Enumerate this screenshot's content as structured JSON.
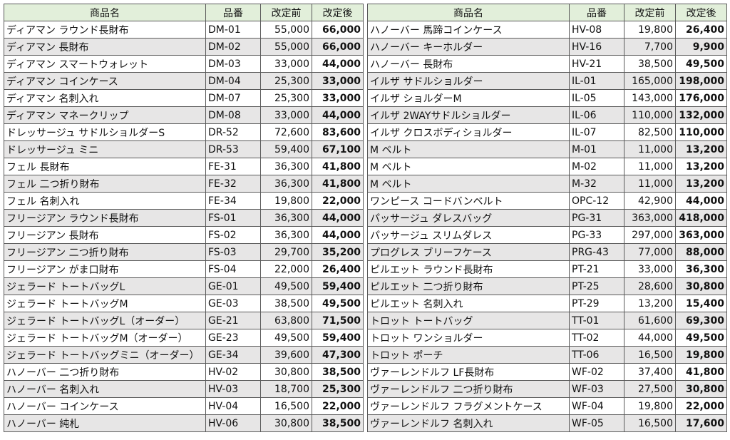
{
  "header": [
    "商品名",
    "品番",
    "改定前",
    "改定後"
  ],
  "tables": [
    {
      "rows": [
        [
          "ディアマン ラウンド長財布",
          "DM-01",
          "55,000",
          "66,000"
        ],
        [
          "ディアマン 長財布",
          "DM-02",
          "55,000",
          "66,000"
        ],
        [
          "ディアマン スマートウォレット",
          "DM-03",
          "33,000",
          "44,000"
        ],
        [
          "ディアマン コインケース",
          "DM-04",
          "25,300",
          "33,000"
        ],
        [
          "ディアマン 名刺入れ",
          "DM-07",
          "25,300",
          "33,000"
        ],
        [
          "ディアマン マネークリップ",
          "DM-08",
          "33,000",
          "44,000"
        ],
        [
          "ドレッサージュ サドルショルダーS",
          "DR-52",
          "72,600",
          "83,600"
        ],
        [
          "ドレッサージュ ミニ",
          "DR-53",
          "59,400",
          "67,100"
        ],
        [
          "フェル 長財布",
          "FE-31",
          "36,300",
          "41,800"
        ],
        [
          "フェル 二つ折り財布",
          "FE-32",
          "36,300",
          "41,800"
        ],
        [
          "フェル 名刺入れ",
          "FE-34",
          "19,800",
          "22,000"
        ],
        [
          "フリージアン ラウンド長財布",
          "FS-01",
          "36,300",
          "44,000"
        ],
        [
          "フリージアン 長財布",
          "FS-02",
          "36,300",
          "44,000"
        ],
        [
          "フリージアン 二つ折り財布",
          "FS-03",
          "29,700",
          "35,200"
        ],
        [
          "フリージアン がま口財布",
          "FS-04",
          "22,000",
          "26,400"
        ],
        [
          "ジェラード トートバッグL",
          "GE-01",
          "49,500",
          "59,400"
        ],
        [
          "ジェラード トートバッグM",
          "GE-03",
          "38,500",
          "49,500"
        ],
        [
          "ジェラード トートバッグL（オーダー）",
          "GE-21",
          "63,800",
          "71,500"
        ],
        [
          "ジェラード トートバッグM（オーダー）",
          "GE-23",
          "49,500",
          "59,400"
        ],
        [
          "ジェラード トートバッグミニ（オーダー）",
          "GE-34",
          "39,600",
          "47,300"
        ],
        [
          "ハノーバー 二つ折り財布",
          "HV-02",
          "30,800",
          "38,500"
        ],
        [
          "ハノーバー 名刺入れ",
          "HV-03",
          "18,700",
          "25,300"
        ],
        [
          "ハノーバー コインケース",
          "HV-04",
          "16,500",
          "22,000"
        ],
        [
          "ハノーバー 純札",
          "HV-06",
          "30,800",
          "38,500"
        ]
      ]
    },
    {
      "rows": [
        [
          "ハノーバー 馬蹄コインケース",
          "HV-08",
          "19,800",
          "26,400"
        ],
        [
          "ハノーバー キーホルダー",
          "HV-16",
          "7,700",
          "9,900"
        ],
        [
          "ハノーバー 長財布",
          "HV-21",
          "38,500",
          "49,500"
        ],
        [
          "イルザ サドルショルダー",
          "IL-01",
          "165,000",
          "198,000"
        ],
        [
          "イルザ ショルダーM",
          "IL-05",
          "143,000",
          "176,000"
        ],
        [
          "イルザ 2WAYサドルショルダー",
          "IL-06",
          "110,000",
          "132,000"
        ],
        [
          "イルザ クロスボディショルダー",
          "IL-07",
          "82,500",
          "110,000"
        ],
        [
          "M ベルト",
          "M-01",
          "11,000",
          "13,200"
        ],
        [
          "M ベルト",
          "M-02",
          "11,000",
          "13,200"
        ],
        [
          "M ベルト",
          "M-32",
          "11,000",
          "13,200"
        ],
        [
          "ワンピース コードバンベルト",
          "OPC-12",
          "42,900",
          "44,000"
        ],
        [
          "パッサージュ ダレスバッグ",
          "PG-31",
          "363,000",
          "418,000"
        ],
        [
          "パッサージュ スリムダレス",
          "PG-33",
          "297,000",
          "363,000"
        ],
        [
          "プログレス ブリーフケース",
          "PRG-43",
          "77,000",
          "88,000"
        ],
        [
          "ピルエット ラウンド長財布",
          "PT-21",
          "33,000",
          "36,300"
        ],
        [
          "ピルエット 二つ折り財布",
          "PT-25",
          "28,600",
          "30,800"
        ],
        [
          "ピルエット 名刺入れ",
          "PT-29",
          "13,200",
          "15,400"
        ],
        [
          "トロット トートバッグ",
          "TT-01",
          "61,600",
          "69,300"
        ],
        [
          "トロット ワンショルダー",
          "TT-02",
          "44,000",
          "49,500"
        ],
        [
          "トロット ポーチ",
          "TT-06",
          "16,500",
          "19,800"
        ],
        [
          "ヴァーレンドルフ LF長財布",
          "WF-02",
          "37,400",
          "41,800"
        ],
        [
          "ヴァーレンドルフ 二つ折り財布",
          "WF-03",
          "27,500",
          "30,800"
        ],
        [
          "ヴァーレンドルフ フラグメントケース",
          "WF-04",
          "19,800",
          "22,000"
        ],
        [
          "ヴァーレンドルフ 名刺入れ",
          "WF-05",
          "16,500",
          "17,600"
        ]
      ]
    }
  ]
}
